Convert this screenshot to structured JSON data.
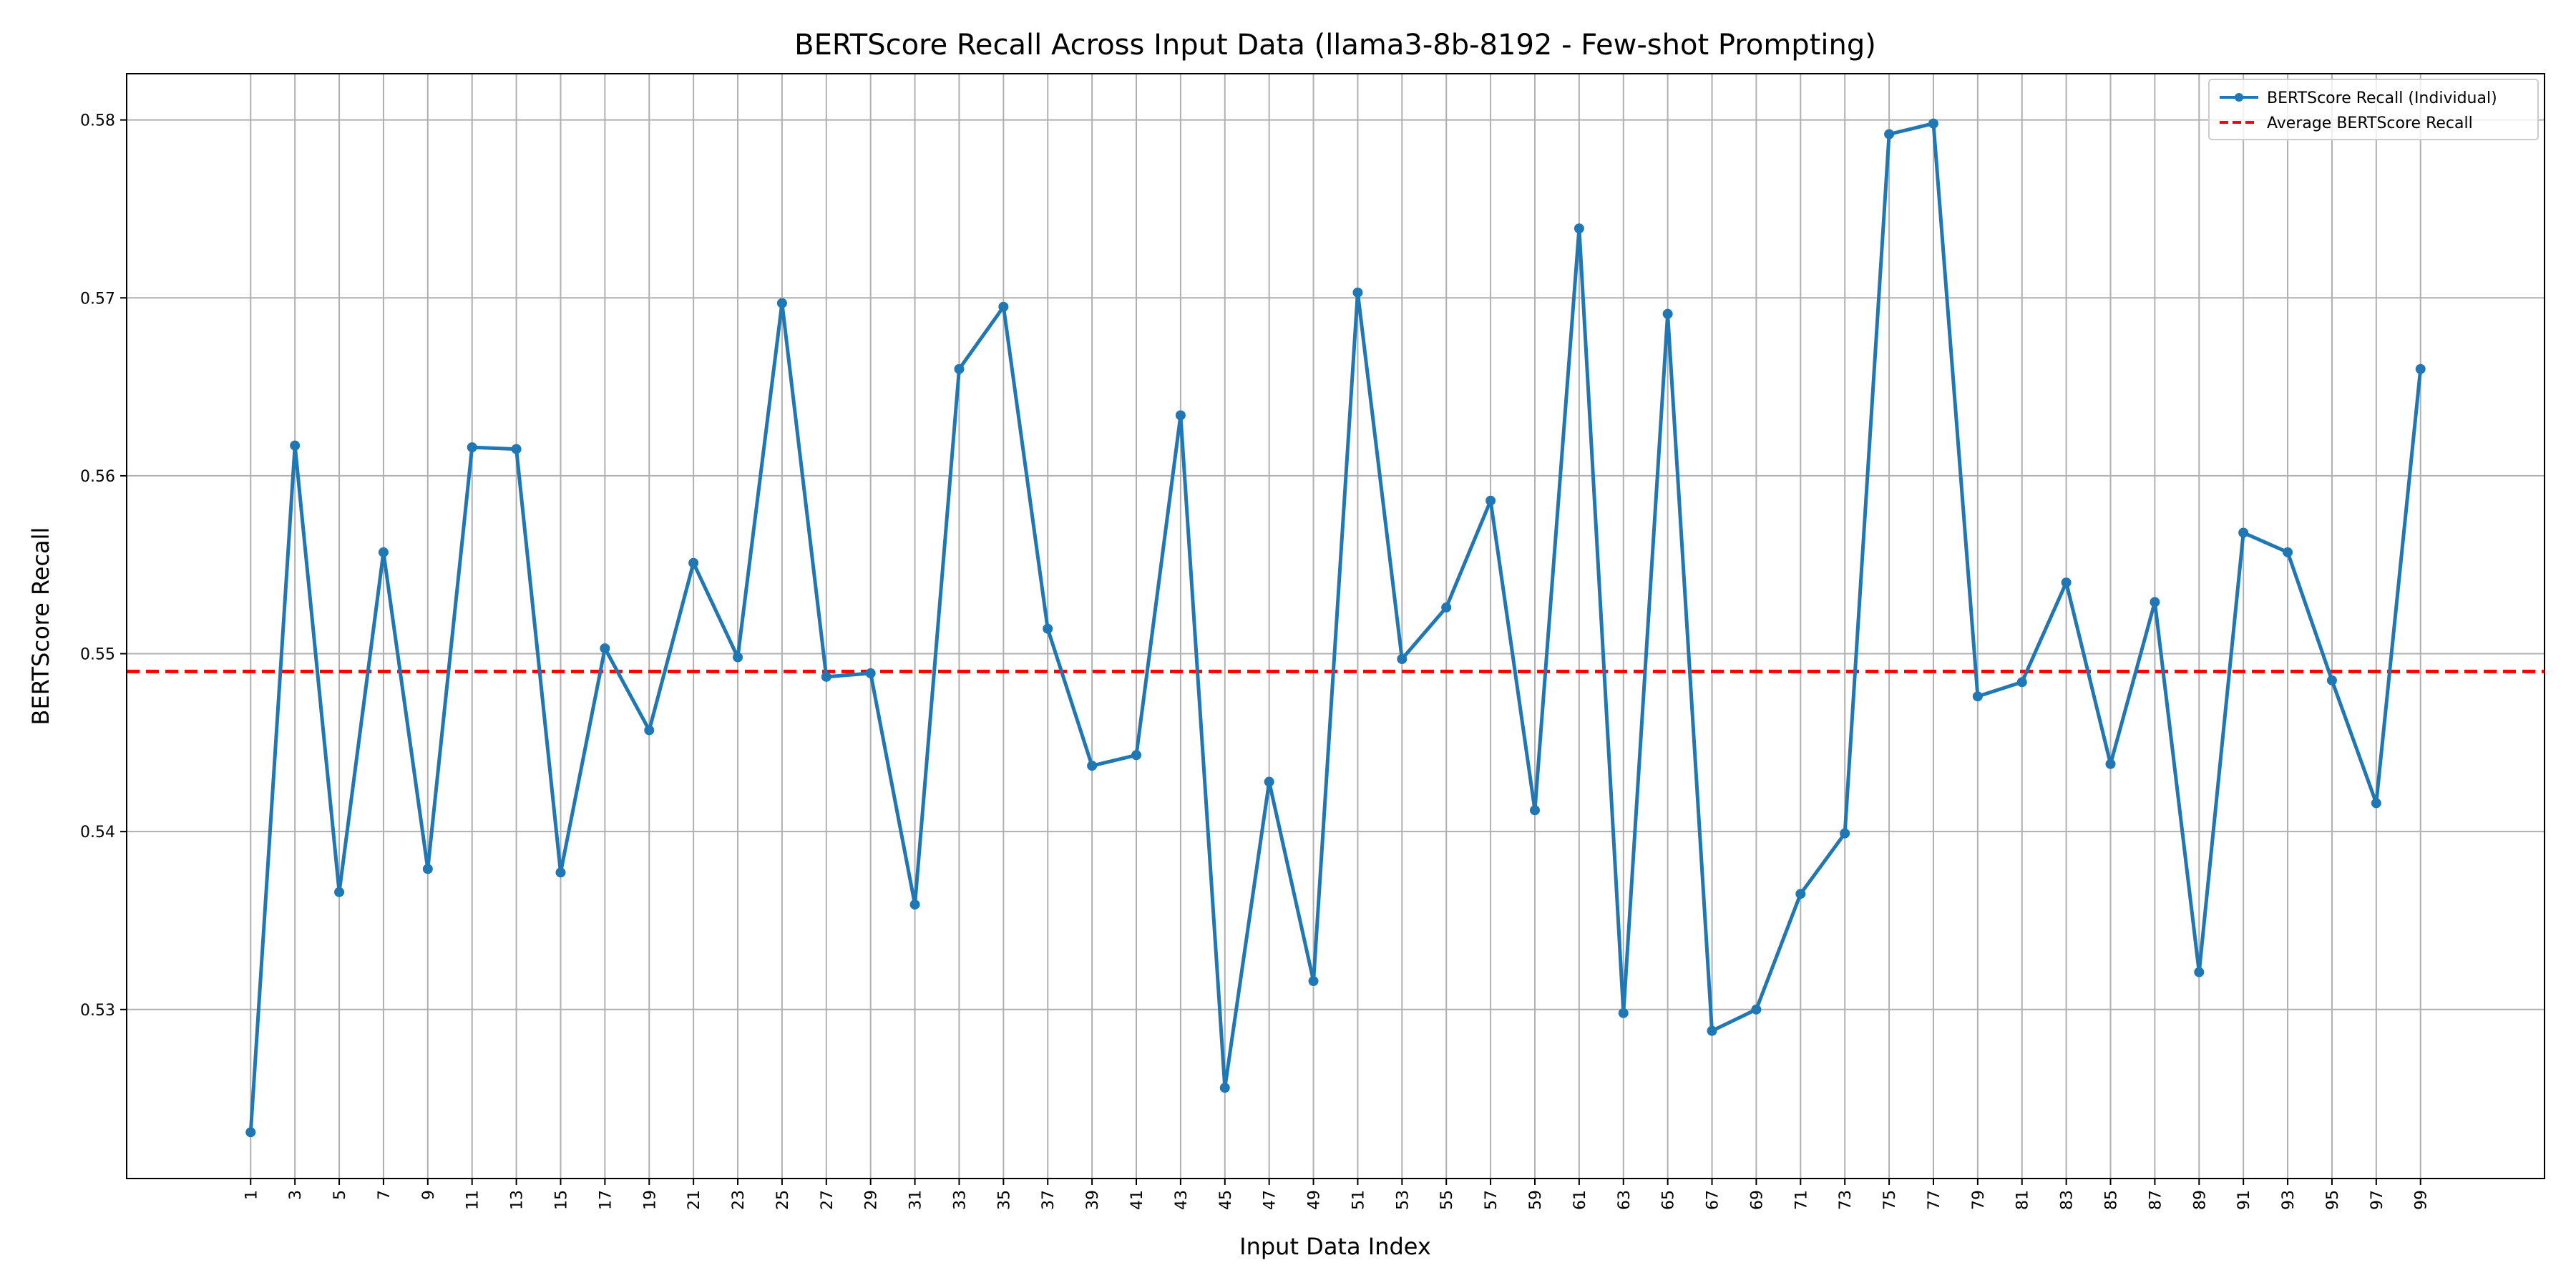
{
  "chart_data": {
    "type": "line",
    "title": "BERTScore Recall Across Input Data (llama3-8b-8192 - Few-shot Prompting)",
    "xlabel": "Input Data Index",
    "ylabel": "BERTScore Recall",
    "xlim": [
      -4.6,
      104.6
    ],
    "ylim": [
      0.5205,
      0.5826
    ],
    "x_ticks": [
      1,
      3,
      5,
      7,
      9,
      11,
      13,
      15,
      17,
      19,
      21,
      23,
      25,
      27,
      29,
      31,
      33,
      35,
      37,
      39,
      41,
      43,
      45,
      47,
      49,
      51,
      53,
      55,
      57,
      59,
      61,
      63,
      65,
      67,
      69,
      71,
      73,
      75,
      77,
      79,
      81,
      83,
      85,
      87,
      89,
      91,
      93,
      95,
      97,
      99
    ],
    "y_ticks": [
      0.53,
      0.54,
      0.55,
      0.56,
      0.57,
      0.58
    ],
    "y_tick_labels": [
      "0.53",
      "0.54",
      "0.55",
      "0.56",
      "0.57",
      "0.58"
    ],
    "grid": true,
    "legend_position": "top-right",
    "colors": {
      "series": "#1f77b4",
      "average": "#ff0000",
      "grid": "#b0b0b0"
    },
    "series": [
      {
        "name": "BERTScore Recall (Individual)",
        "x": [
          1,
          3,
          5,
          7,
          9,
          11,
          13,
          15,
          17,
          19,
          21,
          23,
          25,
          27,
          29,
          31,
          33,
          35,
          37,
          39,
          41,
          43,
          45,
          47,
          49,
          51,
          53,
          55,
          57,
          59,
          61,
          63,
          65,
          67,
          69,
          71,
          73,
          75,
          77,
          79,
          81,
          83,
          85,
          87,
          89,
          91,
          93,
          95,
          97,
          99
        ],
        "values": [
          0.5231,
          0.5617,
          0.5366,
          0.5557,
          0.5379,
          0.5616,
          0.5615,
          0.5377,
          0.5503,
          0.5457,
          0.5551,
          0.5498,
          0.5697,
          0.5487,
          0.5489,
          0.5359,
          0.566,
          0.5695,
          0.5514,
          0.5437,
          0.5443,
          0.5634,
          0.5256,
          0.5428,
          0.5316,
          0.5703,
          0.5497,
          0.5526,
          0.5586,
          0.5412,
          0.5739,
          0.5298,
          0.5691,
          0.5288,
          0.53,
          0.5365,
          0.5399,
          0.5792,
          0.5798,
          0.5476,
          0.5484,
          0.554,
          0.5438,
          0.5529,
          0.5321,
          0.5568,
          0.5557,
          0.5485,
          0.5416,
          0.566
        ]
      }
    ],
    "average": {
      "name": "Average BERTScore Recall",
      "value": 0.549
    }
  }
}
